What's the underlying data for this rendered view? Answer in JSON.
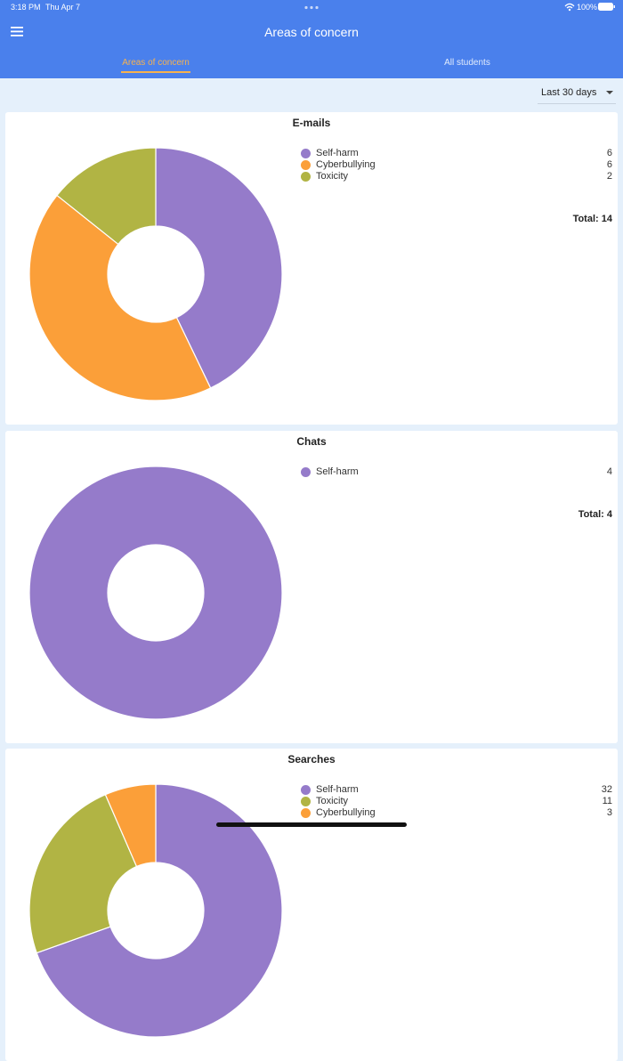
{
  "status_bar": {
    "time": "3:18 PM",
    "date": "Thu Apr 7",
    "battery": "100%"
  },
  "header": {
    "title": "Areas of concern"
  },
  "tabs": [
    "Areas of concern",
    "All students"
  ],
  "filter": "Last 30 days",
  "panels": [
    {
      "title": "E-mails",
      "items": [
        {
          "name": "Self-harm",
          "color": "#957bca",
          "value": 6
        },
        {
          "name": "Cyberbullying",
          "color": "#fb9f39",
          "value": 6
        },
        {
          "name": "Toxicity",
          "color": "#b1b444",
          "value": 2
        }
      ],
      "total_label": "Total:",
      "total": 14
    },
    {
      "title": "Chats",
      "items": [
        {
          "name": "Self-harm",
          "color": "#957bca",
          "value": 4
        }
      ],
      "total_label": "Total:",
      "total": 4
    },
    {
      "title": "Searches",
      "items": [
        {
          "name": "Self-harm",
          "color": "#957bca",
          "value": 32
        },
        {
          "name": "Toxicity",
          "color": "#b1b444",
          "value": 11
        },
        {
          "name": "Cyberbullying",
          "color": "#fb9f39",
          "value": 3
        }
      ]
    }
  ]
}
